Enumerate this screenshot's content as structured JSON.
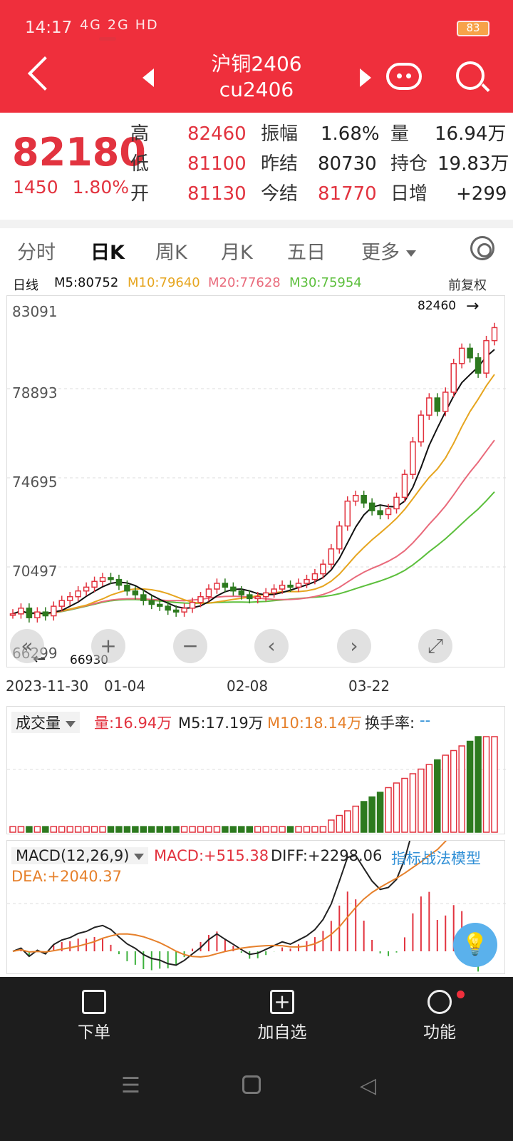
{
  "status": {
    "time": "14:17",
    "signals": "4G 2G HD",
    "battery": "83"
  },
  "header": {
    "title": "沪铜2406",
    "code": "cu2406"
  },
  "quote": {
    "price": "82180",
    "change": "1450",
    "change_pct": "1.80%",
    "rows": [
      {
        "l1": "高",
        "v1": "82460",
        "l2": "振幅",
        "v2": "1.68%",
        "l3": "量",
        "v3": "16.94万"
      },
      {
        "l1": "低",
        "v1": "81100",
        "l2": "昨结",
        "v2": "80730",
        "l3": "持仓",
        "v3": "19.83万"
      },
      {
        "l1": "开",
        "v1": "81130",
        "l2": "今结",
        "v2": "81770",
        "l3": "日增",
        "v3": "+299"
      }
    ]
  },
  "tabs": [
    "分时",
    "日K",
    "周K",
    "月K",
    "五日",
    "更多"
  ],
  "active_tab": "日K",
  "legend": {
    "line": "日线",
    "m5": "M5:80752",
    "m10": "M10:79640",
    "m20": "M20:77628",
    "m30": "M30:75954",
    "adj": "前复权"
  },
  "y_labels": [
    "83091",
    "78893",
    "74695",
    "70497",
    "66299"
  ],
  "high_mark": "82460",
  "low_mark": "66930",
  "dates": [
    "2023-11-30",
    "01-04",
    "02-08",
    "03-22"
  ],
  "volume": {
    "label": "成交量",
    "vol": "量:16.94万",
    "m5": "M5:17.19万",
    "m10": "M10:18.14万",
    "turnover": "换手率:",
    "turnover_val": "--"
  },
  "macd": {
    "label": "MACD(12,26,9)",
    "macd": "MACD:+515.38",
    "diff": "DIFF:+2298.06",
    "dea": "DEA:+2040.37",
    "model": "指标战法模型"
  },
  "bottom_nav": [
    "下单",
    "加自选",
    "功能"
  ],
  "colors": {
    "up": "#e2333f",
    "down": "#2d7a1f",
    "m5": "#111111",
    "m10": "#e6a51f",
    "m20": "#e96a7b",
    "m30": "#5cbf3c"
  },
  "chart_data": {
    "type": "candlestick",
    "title": "",
    "y_range": [
      66299,
      83091
    ],
    "closes": [
      67200,
      67500,
      67000,
      67300,
      67100,
      67600,
      67900,
      68100,
      68400,
      68600,
      68900,
      69100,
      69000,
      68700,
      68400,
      68200,
      67900,
      67700,
      67600,
      67400,
      67300,
      67500,
      67800,
      68100,
      68500,
      68800,
      68600,
      68400,
      68200,
      68000,
      68100,
      68300,
      68500,
      68700,
      68600,
      68800,
      69000,
      69300,
      69800,
      70600,
      71800,
      73100,
      73400,
      73000,
      72600,
      72400,
      72700,
      73300,
      74500,
      76200,
      77600,
      78500,
      77800,
      78800,
      80300,
      81100,
      80600,
      79800,
      81500,
      82180
    ]
  }
}
